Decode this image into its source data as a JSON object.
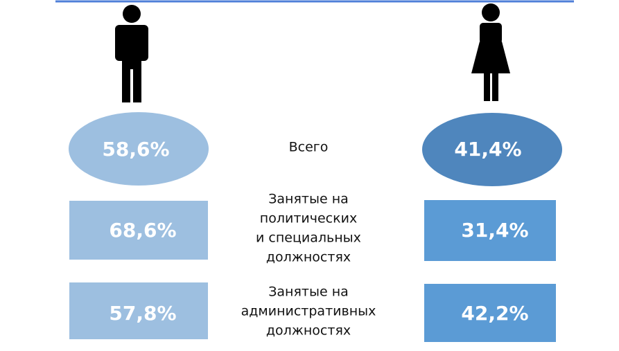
{
  "rows": [
    {
      "label_lines": [
        "Всего"
      ],
      "men": "58,6%",
      "women": "41,4%"
    },
    {
      "label_lines": [
        "Занятые на",
        "политических",
        "и специальных",
        "должностях"
      ],
      "men": "68,6%",
      "women": "31,4%"
    },
    {
      "label_lines": [
        "Занятые на",
        "административных",
        "должностях"
      ],
      "men": "57,8%",
      "women": "42,2%"
    }
  ]
}
